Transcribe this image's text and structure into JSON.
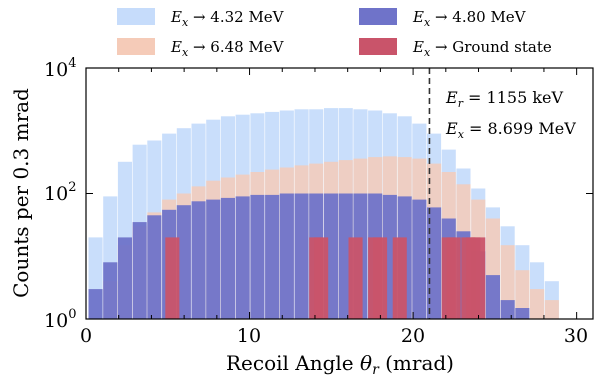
{
  "chart_data": {
    "type": "bar",
    "title": "",
    "xlabel": "Recoil Angle θr (mrad)",
    "ylabel": "Counts per 0.3 mrad",
    "xlim": [
      0,
      31
    ],
    "ylim": [
      1,
      10000
    ],
    "yscale": "log",
    "bin_width": 0.3,
    "xticks": [
      0,
      10,
      20,
      30
    ],
    "yticks": [
      1,
      100,
      10000
    ],
    "ytick_labels": [
      "10^0",
      "10^2",
      "10^4"
    ],
    "legend_position": "top, outside plot, 2 columns",
    "series": [
      {
        "name": "Ex → 4.32 MeV",
        "color": "#c6dcfb",
        "x": [
          0.6,
          1.5,
          2.4,
          3.3,
          4.2,
          5.1,
          6.0,
          6.9,
          7.8,
          8.7,
          9.6,
          10.5,
          11.4,
          12.3,
          13.2,
          14.1,
          15.0,
          15.9,
          16.8,
          17.7,
          18.6,
          19.5,
          20.4,
          21.3,
          22.2,
          23.1,
          24.0,
          24.9,
          25.8,
          26.7,
          27.6,
          28.5,
          29.4
        ],
        "values": [
          20,
          90,
          320,
          600,
          700,
          900,
          1100,
          1300,
          1500,
          1700,
          1800,
          1900,
          2000,
          2100,
          2200,
          2200,
          2300,
          2300,
          2200,
          2100,
          1900,
          1700,
          1300,
          900,
          500,
          250,
          120,
          60,
          30,
          15,
          8,
          4,
          1
        ]
      },
      {
        "name": "Ex → 6.48 MeV",
        "color": "#f5cbb8",
        "x": [
          0.6,
          1.5,
          2.4,
          3.3,
          4.2,
          5.1,
          6.0,
          6.9,
          7.8,
          8.7,
          9.6,
          10.5,
          11.4,
          12.3,
          13.2,
          14.1,
          15.0,
          15.9,
          16.8,
          17.7,
          18.6,
          19.5,
          20.4,
          21.3,
          22.2,
          23.1,
          24.0,
          24.9,
          25.8,
          26.7,
          27.6,
          28.5,
          29.4
        ],
        "values": [
          1,
          4,
          15,
          30,
          50,
          80,
          100,
          130,
          160,
          180,
          200,
          220,
          240,
          260,
          280,
          300,
          320,
          340,
          360,
          380,
          390,
          380,
          360,
          300,
          220,
          140,
          80,
          40,
          15,
          6,
          3,
          2,
          1
        ]
      },
      {
        "name": "Ex → 4.80 MeV",
        "color": "#6f73c9",
        "x": [
          0.6,
          1.5,
          2.4,
          3.3,
          4.2,
          5.1,
          6.0,
          6.9,
          7.8,
          8.7,
          9.6,
          10.5,
          11.4,
          12.3,
          13.2,
          14.1,
          15.0,
          15.9,
          16.8,
          17.7,
          18.6,
          19.5,
          20.4,
          21.3,
          22.2,
          23.1,
          24.0,
          24.9,
          25.8,
          26.7,
          27.6,
          28.5,
          29.4
        ],
        "values": [
          3,
          8,
          20,
          35,
          45,
          55,
          65,
          75,
          80,
          85,
          90,
          95,
          95,
          100,
          100,
          100,
          100,
          100,
          100,
          100,
          95,
          90,
          80,
          60,
          40,
          25,
          12,
          5,
          2,
          1.5,
          1,
          1,
          1
        ]
      },
      {
        "name": "Ex → Ground state",
        "color": "#c9546a",
        "x": [
          5.3,
          14.1,
          14.4,
          16.5,
          17.7,
          18.0,
          19.2,
          22.2,
          22.5,
          23.4,
          23.7,
          24.0
        ],
        "values": [
          20,
          20,
          20,
          20,
          20,
          20,
          20,
          20,
          20,
          20,
          20,
          20
        ]
      }
    ],
    "annotations": [
      {
        "text": "Er = 1155 keV",
        "x": 21.0
      },
      {
        "text": "Ex = 8.699 MeV",
        "x": 21.0
      }
    ],
    "vline_x": 21.0
  }
}
